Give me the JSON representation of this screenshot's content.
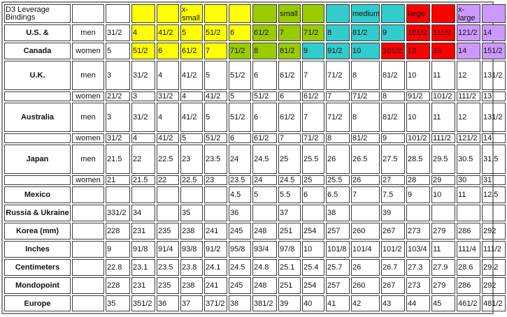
{
  "palette": {
    "y": "#ffff00",
    "g": "#99cc00",
    "c": "#33cccc",
    "r": "#ff0000",
    "p": "#cc99ff",
    "": "#ffffff"
  },
  "header": {
    "title": "D3 Leverage Bindings",
    "size_labels": [
      "",
      "",
      "x-small",
      "",
      "",
      "",
      "small",
      "",
      "",
      "medium",
      "",
      "large",
      "",
      "x-large",
      ""
    ],
    "size_colors": [
      "y",
      "y",
      "y",
      "y",
      "y",
      "g",
      "g",
      "g",
      "c",
      "c",
      "c",
      "r",
      "r",
      "p",
      "p"
    ]
  },
  "rows": [
    {
      "label": "U.S. &",
      "gender": "men",
      "h": 24,
      "values": [
        "31/2",
        "4",
        "41/2",
        "5",
        "51/2",
        "6",
        "61/2",
        "7",
        "71/2",
        "8",
        "81/2",
        "9",
        "101/2",
        "111/2",
        "121/2",
        "14"
      ],
      "colors": [
        "",
        "y",
        "y",
        "y",
        "y",
        "y",
        "g",
        "g",
        "g",
        "c",
        "c",
        "c",
        "r",
        "r",
        "p",
        "p"
      ]
    },
    {
      "label": "Canada",
      "gender": "women",
      "h": 24,
      "values": [
        "5",
        "51/2",
        "6",
        "61/2",
        "7",
        "71/2",
        "8",
        "81/2",
        "9",
        "91/2",
        "10",
        "101/2",
        "12",
        "13",
        "14",
        "151/2"
      ],
      "colors": [
        "",
        "y",
        "y",
        "y",
        "y",
        "g",
        "g",
        "g",
        "c",
        "c",
        "c",
        "r",
        "r",
        "r",
        "p",
        "p"
      ]
    },
    {
      "label": "U.K.",
      "gender": "men",
      "h": 42,
      "values": [
        "3",
        "31/2",
        "4",
        "41/2",
        "5",
        "51/2",
        "6",
        "61/2",
        "7",
        "71/2",
        "8",
        "81/2",
        "10",
        "11",
        "12",
        "131/2"
      ]
    },
    {
      "label": "",
      "gender": "women",
      "h": 14,
      "values": [
        "21/2",
        "3",
        "31/2",
        "4",
        "41/2",
        "5",
        "51/2",
        "6",
        "61/2",
        "7",
        "71/2",
        "8",
        "91/2",
        "101/2",
        "111/2",
        "13"
      ]
    },
    {
      "label": "Australia",
      "gender": "men",
      "h": 42,
      "values": [
        "3",
        "31/2",
        "4",
        "41/2",
        "5",
        "51/2",
        "6",
        "61/2",
        "7",
        "71/2",
        "8",
        "81/2",
        "10",
        "11",
        "12",
        "131/2"
      ]
    },
    {
      "label": "",
      "gender": "women",
      "h": 14,
      "values": [
        "31/2",
        "4",
        "41/2",
        "5",
        "51/2",
        "6",
        "61/2",
        "7",
        "71/2",
        "8",
        "81/2",
        "9",
        "101/2",
        "111/2",
        "121/2",
        "14"
      ]
    },
    {
      "label": "Japan",
      "gender": "men",
      "h": 42,
      "values": [
        "21.5",
        "22",
        "22.5",
        "23",
        "23.5",
        "24",
        "24.5",
        "25",
        "25.5",
        "26",
        "26.5",
        "27.5",
        "28.5",
        "29.5",
        "30.5",
        "31.5"
      ]
    },
    {
      "label": "",
      "gender": "women",
      "h": 14,
      "values": [
        "21",
        "21.5",
        "22",
        "22.5",
        "23",
        "23.5",
        "24",
        "24.5",
        "25",
        "25.5",
        "26",
        "27",
        "28",
        "29",
        "30",
        "31"
      ]
    },
    {
      "label": "Mexico",
      "gender": "",
      "h": 24,
      "values": [
        "",
        "",
        "",
        "",
        "",
        "4.5",
        "5",
        "5.5",
        "6",
        "6.5",
        "7",
        "7.5",
        "9",
        "10",
        "11",
        "12.5"
      ]
    },
    {
      "label": "Russia & Ukraine",
      "gender": "",
      "h": 24,
      "values": [
        "331/2",
        "34",
        "",
        "35",
        "",
        "36",
        "",
        "37",
        "",
        "38",
        "",
        "39",
        "",
        "",
        "",
        ""
      ]
    },
    {
      "label": "Korea (mm)",
      "gender": "",
      "h": 24,
      "values": [
        "228",
        "231",
        "235",
        "238",
        "241",
        "245",
        "248",
        "251",
        "254",
        "257",
        "260",
        "267",
        "273",
        "279",
        "286",
        "292"
      ]
    },
    {
      "label": "Inches",
      "gender": "",
      "h": 24,
      "values": [
        "9",
        "91/8",
        "91/4",
        "93/8",
        "91/2",
        "95/8",
        "93/4",
        "97/8",
        "10",
        "101/8",
        "101/4",
        "101/2",
        "103/4",
        "11",
        "111/4",
        "111/2"
      ]
    },
    {
      "label": "Centimeters",
      "gender": "",
      "h": 24,
      "values": [
        "22.8",
        "23.1",
        "23.5",
        "23.8",
        "24.1",
        "24.5",
        "24.8",
        "25.1",
        "25.4",
        "25.7",
        "26",
        "26.7",
        "27.3",
        "27.9",
        "28.6",
        "29.2"
      ]
    },
    {
      "label": "Mondopoint",
      "gender": "",
      "h": 24,
      "values": [
        "228",
        "231",
        "235",
        "238",
        "241",
        "245",
        "248",
        "251",
        "254",
        "257",
        "260",
        "267",
        "273",
        "279",
        "286",
        "292"
      ]
    },
    {
      "label": "Europe",
      "gender": "",
      "h": 23,
      "values": [
        "35",
        "351/2",
        "36",
        "37",
        "371/2",
        "38",
        "381/2",
        "39",
        "40",
        "41",
        "42",
        "43",
        "44",
        "45",
        "461/2",
        "481/2"
      ]
    }
  ]
}
